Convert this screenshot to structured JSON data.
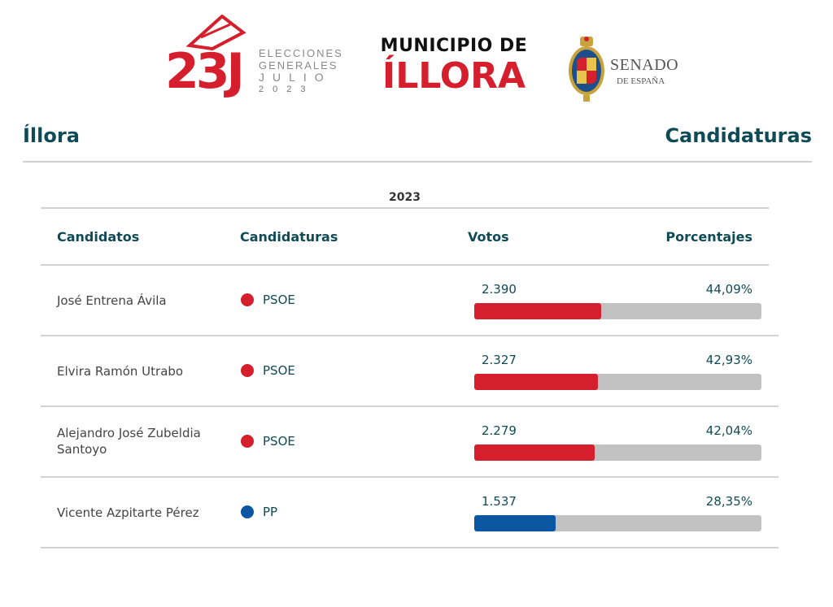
{
  "header": {
    "logo_23j": {
      "big": "23J",
      "line1": "ELECCIONES",
      "line2": "GENERALES",
      "line3": "JULIO",
      "line4": "2023"
    },
    "municipio_label": "MUNICIPIO DE",
    "municipio_name": "ÍLLORA",
    "senado": {
      "line1": "SENADO",
      "line2": "DE ESPAÑA"
    }
  },
  "place_title": "Íllora",
  "section_title": "Candidaturas",
  "table": {
    "year": "2023",
    "headers": {
      "candidates": "Candidatos",
      "parties": "Candidaturas",
      "votes": "Votos",
      "percentages": "Porcentajes"
    },
    "rows": [
      {
        "candidate": "José Entrena Ávila",
        "party": "PSOE",
        "party_color": "#d51f2c",
        "votes": "2.390",
        "percent": "44,09%",
        "percent_value": 44.09
      },
      {
        "candidate": "Elvira Ramón Utrabo",
        "party": "PSOE",
        "party_color": "#d51f2c",
        "votes": "2.327",
        "percent": "42,93%",
        "percent_value": 42.93
      },
      {
        "candidate": "Alejandro José Zubeldia Santoyo",
        "party": "PSOE",
        "party_color": "#d51f2c",
        "votes": "2.279",
        "percent": "42,04%",
        "percent_value": 42.04
      },
      {
        "candidate": "Vicente Azpitarte Pérez",
        "party": "PP",
        "party_color": "#0a56a3",
        "votes": "1.537",
        "percent": "28,35%",
        "percent_value": 28.35
      }
    ]
  },
  "colors": {
    "accent_red": "#d51f2c",
    "teal_text": "#0f4b57",
    "bar_background": "#c2c2c2"
  }
}
